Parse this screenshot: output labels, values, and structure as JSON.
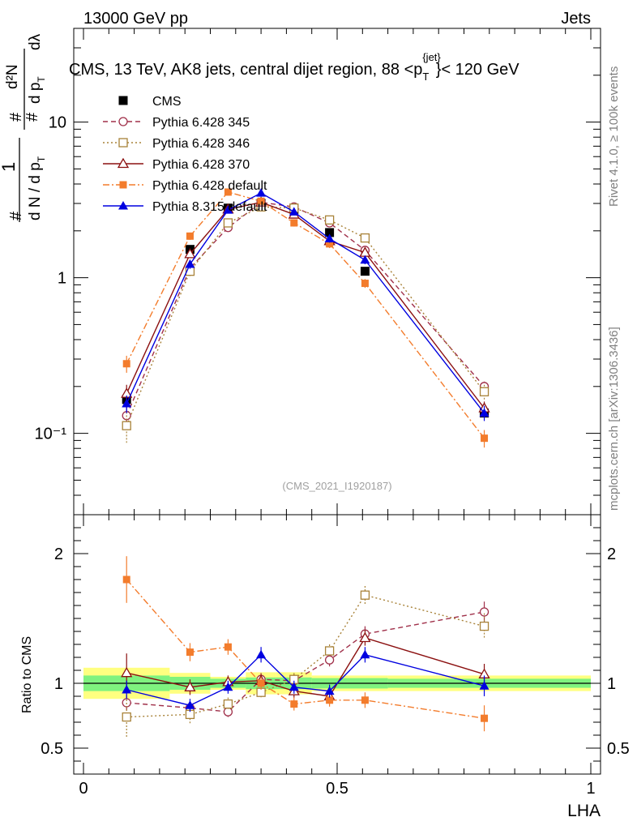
{
  "header": {
    "left": "13000 GeV pp",
    "right": "Jets"
  },
  "side_texts": {
    "rivet": "Rivet 4.1.0, ≥ 100k events",
    "mcplots": "mcplots.cern.ch [arXiv:1306.3436]"
  },
  "colors": {
    "cms": "#000000",
    "p345": "#a0304a",
    "p346": "#a88238",
    "p370": "#8b1010",
    "p6def": "#f37c2c",
    "p8def": "#0000e0",
    "band_green": "#7ff27f",
    "band_yellow": "#ffff80"
  },
  "chart_data": [
    {
      "type": "scatter",
      "title": "CMS, 13 TeV, AK8 jets, central dijet region, 88 <p",
      "title_sup": "{jet}",
      "title_sub": "T",
      "title_tail": "}< 120 GeV",
      "watermark": "(CMS_2021_I1920187)",
      "yscale": "log",
      "ylim": [
        0.03,
        40
      ],
      "xlim": [
        0,
        1
      ],
      "ylabel_parts": {
        "one": "1",
        "num1": "d N / d p",
        "num1_sub": "T",
        "num2": "d",
        "num2_sub": "T",
        "den_top": "d²N",
        "den_bottom": "d p",
        "dlambda": "dλ",
        "hash": "#"
      },
      "yticks": [
        {
          "v": 0.1,
          "label": "10⁻¹"
        },
        {
          "v": 1,
          "label": "1"
        },
        {
          "v": 10,
          "label": "10"
        }
      ],
      "legend": [
        {
          "key": "cms",
          "label": "CMS"
        },
        {
          "key": "p345",
          "label": "Pythia 6.428 345"
        },
        {
          "key": "p346",
          "label": "Pythia 6.428 346"
        },
        {
          "key": "p370",
          "label": "Pythia 6.428 370"
        },
        {
          "key": "p6def",
          "label": "Pythia 6.428 default"
        },
        {
          "key": "p8def",
          "label": "Pythia 8.315 default"
        }
      ],
      "series": [
        {
          "key": "cms",
          "name": "CMS",
          "marker": "square_filled",
          "line": "none",
          "x": [
            0.085,
            0.21,
            0.285,
            0.35,
            0.415,
            0.485,
            0.555,
            0.79
          ],
          "xerr": [
            [
              0.0,
              0.17
            ],
            [
              0.17,
              0.25
            ],
            [
              0.25,
              0.32
            ],
            [
              0.32,
              0.38
            ],
            [
              0.38,
              0.45
            ],
            [
              0.45,
              0.52
            ],
            [
              0.52,
              0.6
            ],
            [
              0.6,
              1.0
            ]
          ],
          "y": [
            0.165,
            1.52,
            2.8,
            3.0,
            2.75,
            1.95,
            1.1,
            0.135
          ]
        },
        {
          "key": "p345",
          "name": "Pythia 6.428 345",
          "marker": "circle_open",
          "line": "dashed",
          "x": [
            0.085,
            0.21,
            0.285,
            0.35,
            0.415,
            0.485,
            0.555,
            0.79
          ],
          "y": [
            0.13,
            1.15,
            2.1,
            3.05,
            2.85,
            2.25,
            1.5,
            0.2
          ],
          "yerr": [
            0.02,
            0.08,
            0.12,
            0.15,
            0.12,
            0.1,
            0.08,
            0.015
          ]
        },
        {
          "key": "p346",
          "name": "Pythia 6.428 346",
          "marker": "square_open",
          "line": "dotted",
          "x": [
            0.085,
            0.21,
            0.285,
            0.35,
            0.415,
            0.485,
            0.555,
            0.79
          ],
          "y": [
            0.112,
            1.1,
            2.25,
            2.85,
            2.8,
            2.35,
            1.8,
            0.185
          ],
          "yerr": [
            0.025,
            0.08,
            0.12,
            0.15,
            0.12,
            0.1,
            0.08,
            0.02
          ]
        },
        {
          "key": "p370",
          "name": "Pythia 6.428 370",
          "marker": "triangle_open",
          "line": "solid",
          "x": [
            0.085,
            0.21,
            0.285,
            0.35,
            0.415,
            0.485,
            0.555,
            0.79
          ],
          "y": [
            0.18,
            1.42,
            2.75,
            3.05,
            2.55,
            1.72,
            1.45,
            0.145
          ],
          "yerr": [
            0.025,
            0.08,
            0.12,
            0.15,
            0.12,
            0.1,
            0.08,
            0.015
          ]
        },
        {
          "key": "p6def",
          "name": "Pythia 6.428 default",
          "marker": "square_filled_small",
          "line": "dashdot",
          "x": [
            0.085,
            0.21,
            0.285,
            0.35,
            0.415,
            0.485,
            0.555,
            0.79
          ],
          "y": [
            0.28,
            1.85,
            3.55,
            3.1,
            2.25,
            1.65,
            0.92,
            0.093
          ],
          "yerr": [
            0.035,
            0.1,
            0.15,
            0.15,
            0.12,
            0.1,
            0.06,
            0.012
          ]
        },
        {
          "key": "p8def",
          "name": "Pythia 8.315 default",
          "marker": "triangle_filled",
          "line": "solid",
          "x": [
            0.085,
            0.21,
            0.285,
            0.35,
            0.415,
            0.485,
            0.555,
            0.79
          ],
          "y": [
            0.155,
            1.22,
            2.72,
            3.5,
            2.65,
            1.78,
            1.3,
            0.135
          ],
          "yerr": [
            0.02,
            0.08,
            0.12,
            0.15,
            0.12,
            0.1,
            0.08,
            0.015
          ]
        }
      ]
    },
    {
      "type": "scatter",
      "title": "",
      "yscale": "linear",
      "ylabel": "Ratio to CMS",
      "xlabel": "LHA",
      "ylim": [
        0.3,
        2.3
      ],
      "xlim": [
        0,
        1
      ],
      "yticks": [
        {
          "v": 0.5,
          "label": "0.5"
        },
        {
          "v": 1,
          "label": "1"
        },
        {
          "v": 2,
          "label": "2"
        }
      ],
      "xticks": [
        {
          "v": 0,
          "label": "0"
        },
        {
          "v": 0.5,
          "label": "0.5"
        },
        {
          "v": 1,
          "label": "1"
        }
      ],
      "reference_line": 1,
      "bands": {
        "bins": [
          [
            0.0,
            0.17
          ],
          [
            0.17,
            0.25
          ],
          [
            0.25,
            0.32
          ],
          [
            0.32,
            0.38
          ],
          [
            0.38,
            0.45
          ],
          [
            0.45,
            0.52
          ],
          [
            0.52,
            0.6
          ],
          [
            0.6,
            1.0
          ]
        ],
        "green": [
          0.06,
          0.05,
          0.035,
          0.045,
          0.045,
          0.04,
          0.04,
          0.035
        ],
        "yellow": [
          0.12,
          0.08,
          0.05,
          0.085,
          0.085,
          0.06,
          0.06,
          0.06
        ]
      },
      "series": [
        {
          "key": "p345",
          "x": [
            0.085,
            0.21,
            0.285,
            0.35,
            0.415,
            0.485,
            0.555,
            0.79
          ],
          "y": [
            0.85,
            0.81,
            0.78,
            1.03,
            1.02,
            1.18,
            1.38,
            1.55
          ],
          "yerr": [
            0.06,
            0.04,
            0.04,
            0.05,
            0.05,
            0.05,
            0.06,
            0.08
          ]
        },
        {
          "key": "p346",
          "x": [
            0.085,
            0.21,
            0.285,
            0.35,
            0.415,
            0.485,
            0.555,
            0.79
          ],
          "y": [
            0.74,
            0.76,
            0.84,
            0.93,
            1.03,
            1.25,
            1.68,
            1.44
          ],
          "yerr": [
            0.16,
            0.07,
            0.05,
            0.05,
            0.05,
            0.05,
            0.07,
            0.1
          ]
        },
        {
          "key": "p370",
          "x": [
            0.085,
            0.21,
            0.285,
            0.35,
            0.415,
            0.485,
            0.555,
            0.79
          ],
          "y": [
            1.08,
            0.97,
            1.01,
            1.02,
            0.94,
            0.9,
            1.35,
            1.07
          ],
          "yerr": [
            0.15,
            0.06,
            0.05,
            0.05,
            0.05,
            0.05,
            0.06,
            0.08
          ]
        },
        {
          "key": "p6def",
          "x": [
            0.085,
            0.21,
            0.285,
            0.35,
            0.415,
            0.485,
            0.555,
            0.79
          ],
          "y": [
            1.8,
            1.24,
            1.28,
            1.0,
            0.84,
            0.87,
            0.87,
            0.73
          ],
          "yerr": [
            0.18,
            0.07,
            0.06,
            0.05,
            0.05,
            0.05,
            0.06,
            0.1
          ]
        },
        {
          "key": "p8def",
          "x": [
            0.085,
            0.21,
            0.285,
            0.35,
            0.415,
            0.485,
            0.555,
            0.79
          ],
          "y": [
            0.95,
            0.83,
            0.97,
            1.22,
            0.97,
            0.94,
            1.22,
            0.98
          ],
          "yerr": [
            0.07,
            0.05,
            0.05,
            0.06,
            0.05,
            0.05,
            0.06,
            0.08
          ]
        }
      ]
    }
  ]
}
